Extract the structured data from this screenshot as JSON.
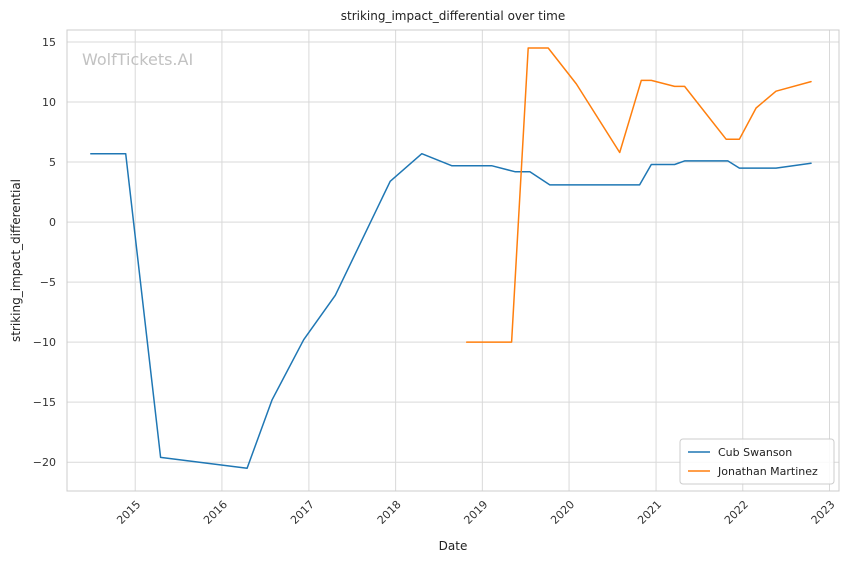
{
  "chart_data": {
    "type": "line",
    "title": "striking_impact_differential over time",
    "xlabel": "Date",
    "ylabel": "striking_impact_differential",
    "watermark": "WolfTickets.AI",
    "xlim": [
      "2014-03-20",
      "2023-02-10"
    ],
    "ylim": [
      -22.4,
      16.0
    ],
    "x_ticks": [
      "2015-01-01",
      "2016-01-01",
      "2017-01-01",
      "2018-01-01",
      "2019-01-01",
      "2020-01-01",
      "2021-01-01",
      "2022-01-01",
      "2023-01-01"
    ],
    "x_tick_labels": [
      "2015",
      "2016",
      "2017",
      "2018",
      "2019",
      "2020",
      "2021",
      "2022",
      "2023"
    ],
    "y_ticks": [
      15,
      10,
      5,
      0,
      -5,
      -10,
      -15,
      -20
    ],
    "y_tick_labels": [
      "15",
      "10",
      "5",
      "0",
      "−5",
      "−10",
      "−15",
      "−20"
    ],
    "grid": true,
    "legend_position": "bottom-right",
    "series": [
      {
        "name": "Cub Swanson",
        "color": "#1f77b4",
        "points": [
          [
            "2014-06-28",
            5.7
          ],
          [
            "2014-11-22",
            5.7
          ],
          [
            "2015-04-18",
            -19.6
          ],
          [
            "2016-04-16",
            -20.5
          ],
          [
            "2016-07-30",
            -14.8
          ],
          [
            "2016-12-10",
            -9.8
          ],
          [
            "2017-04-22",
            -6.1
          ],
          [
            "2017-12-09",
            3.4
          ],
          [
            "2018-04-21",
            5.7
          ],
          [
            "2018-08-25",
            4.7
          ],
          [
            "2019-02-09",
            4.7
          ],
          [
            "2019-05-18",
            4.2
          ],
          [
            "2019-07-20",
            4.2
          ],
          [
            "2019-10-12",
            3.1
          ],
          [
            "2020-10-24",
            3.1
          ],
          [
            "2020-12-12",
            4.8
          ],
          [
            "2021-03-20",
            4.8
          ],
          [
            "2021-05-01",
            5.1
          ],
          [
            "2021-10-30",
            5.1
          ],
          [
            "2021-12-18",
            4.5
          ],
          [
            "2022-05-21",
            4.5
          ],
          [
            "2022-10-15",
            4.9
          ]
        ]
      },
      {
        "name": "Jonathan Martinez",
        "color": "#ff7f0e",
        "points": [
          [
            "2018-10-27",
            -10.0
          ],
          [
            "2019-05-04",
            -10.0
          ],
          [
            "2019-07-13",
            14.5
          ],
          [
            "2019-10-05",
            14.5
          ],
          [
            "2020-02-01",
            11.5
          ],
          [
            "2020-08-01",
            5.8
          ],
          [
            "2020-10-31",
            11.8
          ],
          [
            "2020-12-12",
            11.8
          ],
          [
            "2021-03-20",
            11.3
          ],
          [
            "2021-05-01",
            11.3
          ],
          [
            "2021-10-23",
            6.9
          ],
          [
            "2021-12-18",
            6.9
          ],
          [
            "2022-02-26",
            9.5
          ],
          [
            "2022-05-21",
            10.9
          ],
          [
            "2022-10-15",
            11.7
          ]
        ]
      }
    ]
  }
}
